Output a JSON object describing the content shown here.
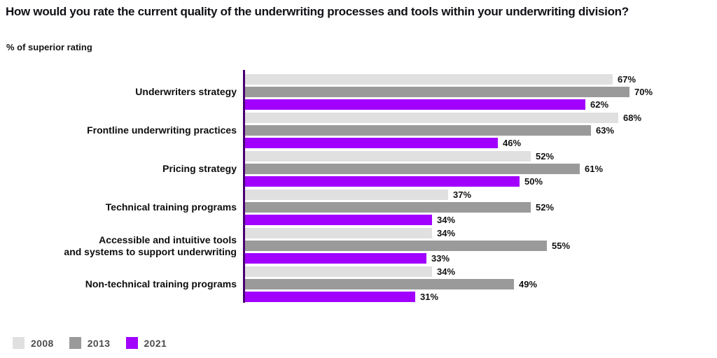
{
  "title": "How would you rate the current quality of the underwriting processes and tools within your underwriting division?",
  "subtitle": "% of superior rating",
  "chart_data": {
    "type": "bar",
    "orientation": "horizontal",
    "title": "How would you rate the current quality of the underwriting processes and tools within your underwriting division?",
    "subtitle": "% of superior rating",
    "categories": [
      "Underwriters strategy",
      "Frontline underwriting practices",
      "Pricing strategy",
      "Technical training programs",
      "Accessible and intuitive tools\nand systems to support underwriting",
      "Non-technical training programs"
    ],
    "series": [
      {
        "name": "2008",
        "color": "#e0e0e0",
        "values": [
          67,
          68,
          52,
          37,
          34,
          34
        ]
      },
      {
        "name": "2013",
        "color": "#9a9a9a",
        "values": [
          70,
          63,
          61,
          52,
          55,
          49
        ]
      },
      {
        "name": "2021",
        "color": "#a100ff",
        "values": [
          62,
          46,
          50,
          34,
          33,
          31
        ]
      }
    ],
    "value_suffix": "%",
    "xlim": [
      0,
      78
    ],
    "grid": false,
    "axis_color": "#460073",
    "value_labels": "outside-end",
    "legend_position": "bottom-left"
  },
  "legend": {
    "items": [
      {
        "label": "2008",
        "color": "#e0e0e0"
      },
      {
        "label": "2013",
        "color": "#9a9a9a"
      },
      {
        "label": "2021",
        "color": "#a100ff"
      }
    ]
  }
}
